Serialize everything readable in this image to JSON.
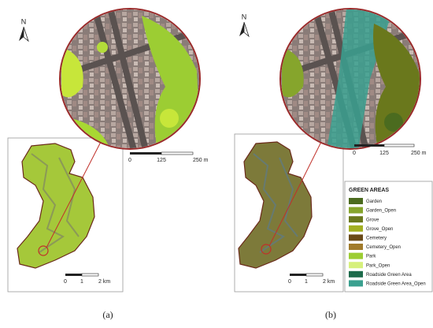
{
  "panels": [
    {
      "north": "N",
      "zoom_scale": [
        "0",
        "125",
        "250 m"
      ],
      "map_scale": [
        "0",
        "1",
        "2 km"
      ],
      "caption": "(a)"
    },
    {
      "north": "N",
      "zoom_scale": [
        "0",
        "125",
        "250 m"
      ],
      "map_scale": [
        "0",
        "1",
        "2 km"
      ],
      "caption": "(b)"
    }
  ],
  "legend": {
    "title": "GREEN AREAS",
    "items": [
      {
        "label": "Garden",
        "color": "#4b6b1f"
      },
      {
        "label": "Garden_Open",
        "color": "#86a52c"
      },
      {
        "label": "Grove",
        "color": "#6a781c"
      },
      {
        "label": "Grove_Open",
        "color": "#a3b022"
      },
      {
        "label": "Cemetery",
        "color": "#6a4a18"
      },
      {
        "label": "Cemetery_Open",
        "color": "#a17b2b"
      },
      {
        "label": "Park",
        "color": "#9ccd33"
      },
      {
        "label": "Park_Open",
        "color": "#d6f07c"
      },
      {
        "label": "Roadside Green Area",
        "color": "#1d6b4b"
      },
      {
        "label": "Roadside Green Area_Open",
        "color": "#3aa08f"
      }
    ]
  }
}
